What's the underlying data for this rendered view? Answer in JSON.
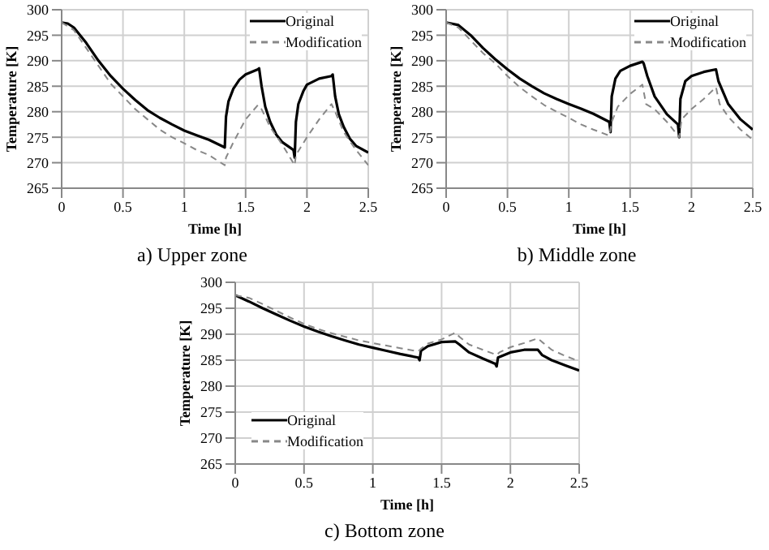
{
  "chart_data": [
    {
      "type": "line",
      "title": "a)   Upper zone",
      "xlabel": "Time [h]",
      "ylabel": "Temperature [K]",
      "xlim": [
        0,
        2.5
      ],
      "ylim": [
        265,
        300
      ],
      "xticks": [
        0,
        0.5,
        1,
        1.5,
        2,
        2.5
      ],
      "yticks": [
        265,
        270,
        275,
        280,
        285,
        290,
        295,
        300
      ],
      "grid": true,
      "legend": "top right",
      "marker": "none",
      "series": [
        {
          "name": "Original",
          "color": "#000000",
          "line_style": "solid",
          "x": [
            0,
            0.05,
            0.1,
            0.2,
            0.3,
            0.4,
            0.5,
            0.6,
            0.7,
            0.8,
            0.9,
            1.0,
            1.1,
            1.2,
            1.33,
            1.34,
            1.36,
            1.4,
            1.45,
            1.5,
            1.6,
            1.61,
            1.63,
            1.66,
            1.7,
            1.75,
            1.8,
            1.89,
            1.9,
            1.91,
            1.93,
            1.97,
            2.0,
            2.1,
            2.2,
            2.21,
            2.23,
            2.26,
            2.3,
            2.35,
            2.4,
            2.5
          ],
          "values": [
            297.5,
            297.3,
            296.5,
            293.5,
            290,
            287,
            284.5,
            282.3,
            280.3,
            278.8,
            277.5,
            276.3,
            275.4,
            274.5,
            273,
            279,
            282,
            284.5,
            286.3,
            287.3,
            288.3,
            288.5,
            285,
            281,
            278,
            275.5,
            274,
            272.5,
            271,
            278,
            281.5,
            284,
            285.3,
            286.5,
            287,
            287.3,
            283,
            279.5,
            277,
            274.7,
            273.3,
            272
          ]
        },
        {
          "name": "Modification",
          "color": "#888888",
          "line_style": "dashed",
          "x": [
            0,
            0.1,
            0.2,
            0.3,
            0.4,
            0.5,
            0.6,
            0.7,
            0.8,
            0.9,
            1.0,
            1.1,
            1.2,
            1.33,
            1.34,
            1.4,
            1.5,
            1.6,
            1.63,
            1.7,
            1.8,
            1.9,
            1.91,
            2.0,
            2.1,
            2.2,
            2.23,
            2.3,
            2.4,
            2.5
          ],
          "values": [
            297.5,
            296,
            292.5,
            289,
            285.5,
            283,
            280.5,
            278.5,
            276.5,
            275,
            273.8,
            272.5,
            271.5,
            269.5,
            271,
            274,
            278.5,
            281.3,
            280.5,
            277,
            273.5,
            269.5,
            271.5,
            275,
            278.5,
            281.5,
            280,
            276,
            272.5,
            269.5
          ]
        }
      ]
    },
    {
      "type": "line",
      "title": "b)   Middle zone",
      "xlabel": "Time [h]",
      "ylabel": "Temperature [K]",
      "xlim": [
        0,
        2.5
      ],
      "ylim": [
        265,
        300
      ],
      "xticks": [
        0,
        0.5,
        1,
        1.5,
        2,
        2.5
      ],
      "yticks": [
        265,
        270,
        275,
        280,
        285,
        290,
        295,
        300
      ],
      "grid": true,
      "legend": "top right",
      "marker": "none",
      "series": [
        {
          "name": "Original",
          "color": "#000000",
          "line_style": "solid",
          "x": [
            0,
            0.1,
            0.2,
            0.3,
            0.4,
            0.5,
            0.6,
            0.7,
            0.8,
            0.9,
            1.0,
            1.1,
            1.2,
            1.33,
            1.34,
            1.35,
            1.38,
            1.42,
            1.5,
            1.6,
            1.61,
            1.64,
            1.7,
            1.8,
            1.89,
            1.9,
            1.91,
            1.95,
            2.0,
            2.1,
            2.2,
            2.22,
            2.3,
            2.4,
            2.5
          ],
          "values": [
            297.5,
            297,
            295,
            292.5,
            290.3,
            288.3,
            286.5,
            285,
            283.6,
            282.5,
            281.5,
            280.6,
            279.6,
            278,
            276,
            283,
            286.5,
            288,
            289,
            289.8,
            289.5,
            287,
            283,
            279.5,
            277.5,
            275,
            282.5,
            286,
            287,
            287.8,
            288.3,
            286,
            281.5,
            278.5,
            276.5
          ]
        },
        {
          "name": "Modification",
          "color": "#888888",
          "line_style": "dashed",
          "x": [
            0,
            0.1,
            0.2,
            0.3,
            0.4,
            0.5,
            0.6,
            0.7,
            0.8,
            0.9,
            1.0,
            1.1,
            1.2,
            1.33,
            1.35,
            1.4,
            1.5,
            1.6,
            1.63,
            1.7,
            1.8,
            1.9,
            1.92,
            2.0,
            2.1,
            2.2,
            2.23,
            2.3,
            2.4,
            2.5
          ],
          "values": [
            297.5,
            296.5,
            294,
            291.5,
            289.5,
            287,
            284.8,
            283,
            281.3,
            280,
            278.8,
            277.5,
            276.5,
            275.3,
            278,
            281,
            283.5,
            285.3,
            281.5,
            280.5,
            278,
            275,
            278.5,
            280.5,
            282.5,
            284.8,
            281.5,
            279,
            276.5,
            274.5
          ]
        }
      ]
    },
    {
      "type": "line",
      "title": "c)   Bottom zone",
      "xlabel": "Time [h]",
      "ylabel": "Temperature [K]",
      "xlim": [
        0,
        2.5
      ],
      "ylim": [
        265,
        300
      ],
      "xticks": [
        0,
        0.5,
        1,
        1.5,
        2,
        2.5
      ],
      "yticks": [
        265,
        270,
        275,
        280,
        285,
        290,
        295,
        300
      ],
      "grid": true,
      "legend": "bottom left",
      "marker": "none",
      "series": [
        {
          "name": "Original",
          "color": "#000000",
          "line_style": "solid",
          "x": [
            0,
            0.1,
            0.2,
            0.3,
            0.4,
            0.5,
            0.6,
            0.7,
            0.8,
            0.9,
            1.0,
            1.1,
            1.2,
            1.33,
            1.34,
            1.35,
            1.4,
            1.5,
            1.6,
            1.63,
            1.7,
            1.8,
            1.89,
            1.9,
            1.91,
            2.0,
            2.1,
            2.2,
            2.23,
            2.3,
            2.4,
            2.5
          ],
          "values": [
            297.5,
            296.3,
            295,
            293.8,
            292.6,
            291.5,
            290.5,
            289.6,
            288.8,
            288,
            287.4,
            286.8,
            286.2,
            285.5,
            285,
            286.8,
            287.7,
            288.5,
            288.6,
            288,
            286.5,
            285.3,
            284.3,
            283.8,
            285.5,
            286.5,
            287,
            287,
            286,
            285,
            284,
            283
          ]
        },
        {
          "name": "Modification",
          "color": "#888888",
          "line_style": "dashed",
          "x": [
            0,
            0.1,
            0.2,
            0.3,
            0.4,
            0.5,
            0.6,
            0.7,
            0.8,
            0.9,
            1.0,
            1.1,
            1.2,
            1.33,
            1.35,
            1.4,
            1.5,
            1.6,
            1.63,
            1.7,
            1.8,
            1.9,
            1.92,
            2.0,
            2.1,
            2.2,
            2.23,
            2.3,
            2.4,
            2.5
          ],
          "values": [
            297.5,
            297,
            295.8,
            294.5,
            293.2,
            292,
            291,
            290.2,
            289.5,
            288.8,
            288.3,
            287.8,
            287.3,
            286.7,
            287.2,
            288.2,
            289,
            290.3,
            289.5,
            288,
            287,
            286,
            286.5,
            287.5,
            288.3,
            289.2,
            288.5,
            287,
            285.8,
            284.8
          ]
        }
      ]
    }
  ]
}
